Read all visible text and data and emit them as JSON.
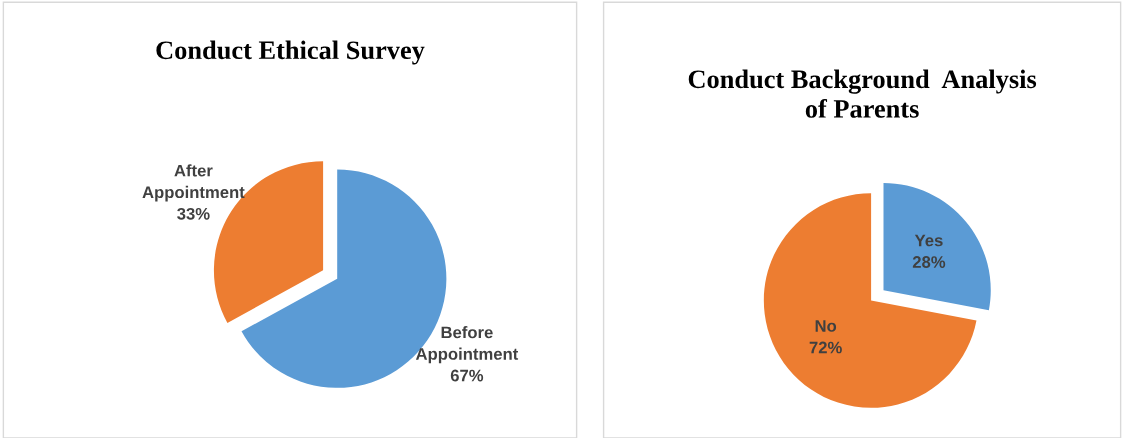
{
  "chart_data": [
    {
      "type": "pie",
      "title": "Conduct Ethical Survey",
      "categories": [
        "Before Appointment",
        "After Appointment"
      ],
      "values": [
        67,
        33
      ],
      "colors": [
        "#5b9bd5",
        "#ed7d31"
      ],
      "value_labels": [
        "67%",
        "33%"
      ],
      "legend": false
    },
    {
      "type": "pie",
      "title": "Conduct Background  Analysis\nof Parents",
      "categories": [
        "Yes",
        "No"
      ],
      "values": [
        28,
        72
      ],
      "colors": [
        "#5b9bd5",
        "#ed7d31"
      ],
      "value_labels": [
        "28%",
        "72%"
      ],
      "legend": false
    }
  ]
}
